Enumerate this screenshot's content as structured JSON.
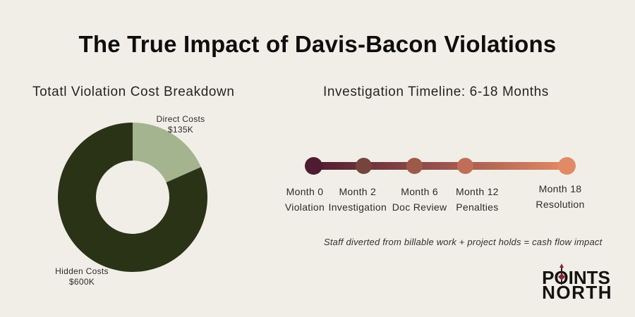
{
  "header": {
    "title": "The True Impact of Davis-Bacon Violations"
  },
  "chart_data": [
    {
      "type": "pie",
      "subtype": "donut",
      "title": "Totatl Violation Cost Breakdown",
      "slices": [
        {
          "label": "Direct Costs",
          "value_label": "$135K",
          "value": 135,
          "color": "#a4b48e"
        },
        {
          "label": "Hidden Costs",
          "value_label": "$600K",
          "value": 600,
          "color": "#2b3317"
        }
      ],
      "start_angle_deg": 0,
      "direction": "clockwise",
      "labels_position": "outside"
    },
    {
      "type": "line",
      "subtype": "timeline",
      "title": "Investigation Timeline: 6-18 Months",
      "x_months": [
        0,
        2,
        6,
        12,
        18
      ],
      "points": [
        {
          "month_label": "Month 0",
          "stage_label": "Violation",
          "color": "#4f1b30",
          "position_pct": 0
        },
        {
          "month_label": "Month 2",
          "stage_label": "Investigation",
          "color": "#75443c",
          "position_pct": 20
        },
        {
          "month_label": "Month 6",
          "stage_label": "Doc Review",
          "color": "#9e5a48",
          "position_pct": 40
        },
        {
          "month_label": "Month 12",
          "stage_label": "Penalties",
          "color": "#c06f56",
          "position_pct": 60
        },
        {
          "month_label": "Month 18",
          "stage_label": "Resolution",
          "color": "#e28a66",
          "position_pct": 100
        }
      ],
      "line_gradient": [
        "#4f1b30",
        "#e28a66"
      ],
      "note": "Staff diverted from billable work + project holds = cash flow impact"
    }
  ],
  "logo": {
    "line1_pre": "P",
    "line1_o": "O",
    "line1_post": "INTS",
    "line2": "NORTH",
    "accent_color": "#8b2433"
  },
  "colors": {
    "background": "#f1eee8",
    "title_text": "#0e0e0e",
    "body_text": "#2e2c29"
  }
}
